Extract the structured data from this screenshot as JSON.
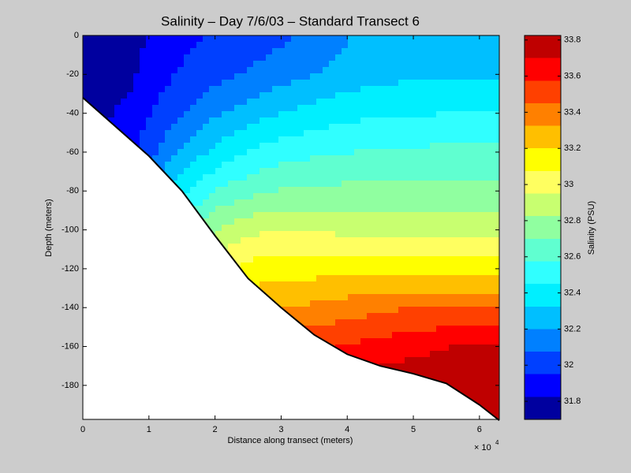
{
  "chart_data": {
    "type": "contour",
    "title": "Salinity – Day 7/6/03 – Standard Transect 6",
    "x_label": "Distance along transect (meters)",
    "y_label": "Depth (meters)",
    "colorbar_label": "Salinity (PSU)",
    "x_exponent_base": "× 10",
    "x_exponent": "4",
    "xlim": [
      0,
      63000
    ],
    "ylim": [
      -197.5,
      0
    ],
    "xticks": [
      {
        "value": 0,
        "label": "0"
      },
      {
        "value": 10000,
        "label": "1"
      },
      {
        "value": 20000,
        "label": "2"
      },
      {
        "value": 30000,
        "label": "3"
      },
      {
        "value": 40000,
        "label": "4"
      },
      {
        "value": 50000,
        "label": "5"
      },
      {
        "value": 60000,
        "label": "6"
      }
    ],
    "yticks": [
      0,
      -20,
      -40,
      -60,
      -80,
      -100,
      -120,
      -140,
      -160,
      -180
    ],
    "x": [
      0,
      7000,
      14000,
      21000,
      28000,
      35000,
      42000,
      49000,
      56000,
      63000
    ],
    "y": [
      0,
      -20,
      -40,
      -60,
      -80,
      -100,
      -120,
      -140,
      -160,
      -180
    ],
    "z": [
      [
        31.75,
        31.78,
        31.9,
        31.97,
        32.03,
        32.1,
        32.22,
        32.25,
        32.25,
        32.25
      ],
      [
        31.76,
        31.8,
        31.95,
        32.05,
        32.12,
        32.2,
        32.27,
        32.3,
        32.3,
        32.3
      ],
      [
        31.78,
        31.85,
        32.05,
        32.2,
        32.3,
        32.38,
        32.42,
        32.44,
        32.45,
        32.45
      ],
      [
        31.8,
        31.9,
        32.2,
        32.38,
        32.5,
        32.55,
        32.58,
        32.6,
        32.6,
        32.6
      ],
      [
        31.85,
        32.0,
        32.4,
        32.6,
        32.7,
        32.72,
        32.74,
        32.75,
        32.75,
        32.75
      ],
      [
        31.9,
        32.1,
        32.6,
        32.85,
        32.95,
        32.93,
        32.92,
        32.9,
        32.9,
        32.9
      ],
      [
        32.0,
        32.2,
        32.8,
        33.05,
        33.15,
        33.15,
        33.15,
        33.15,
        33.15,
        33.15
      ],
      [
        32.1,
        32.3,
        33.0,
        33.25,
        33.3,
        33.35,
        33.4,
        33.45,
        33.45,
        33.45
      ],
      [
        32.2,
        32.4,
        33.1,
        33.4,
        33.5,
        33.55,
        33.6,
        33.65,
        33.7,
        33.7
      ],
      [
        32.3,
        32.5,
        33.2,
        33.5,
        33.6,
        33.7,
        33.75,
        33.8,
        33.82,
        33.82
      ]
    ],
    "bottom": {
      "x": [
        0,
        5000,
        10000,
        15000,
        20000,
        25000,
        30000,
        35000,
        40000,
        45000,
        50000,
        55000,
        60000,
        63000
      ],
      "depth": [
        -32,
        -47,
        -62,
        -80,
        -103,
        -125,
        -140,
        -154,
        -164,
        -170,
        -174,
        -179,
        -190,
        -198
      ]
    },
    "levels": [
      31.7,
      31.825,
      31.95,
      32.075,
      32.2,
      32.325,
      32.45,
      32.575,
      32.7,
      32.825,
      32.95,
      33.075,
      33.2,
      33.325,
      33.45,
      33.575,
      33.7,
      33.825
    ],
    "colors": [
      "#00009f",
      "#0000ff",
      "#0040ff",
      "#0080ff",
      "#00bfff",
      "#00efff",
      "#30ffff",
      "#60ffd0",
      "#90ffa0",
      "#c8ff70",
      "#ffff60",
      "#ffff00",
      "#ffbf00",
      "#ff8000",
      "#ff4000",
      "#ff0000",
      "#bf0000"
    ],
    "clim": [
      31.7,
      33.825
    ],
    "cticks": [
      31.8,
      32,
      32.2,
      32.4,
      32.6,
      32.8,
      33,
      33.2,
      33.4,
      33.6,
      33.8
    ]
  }
}
